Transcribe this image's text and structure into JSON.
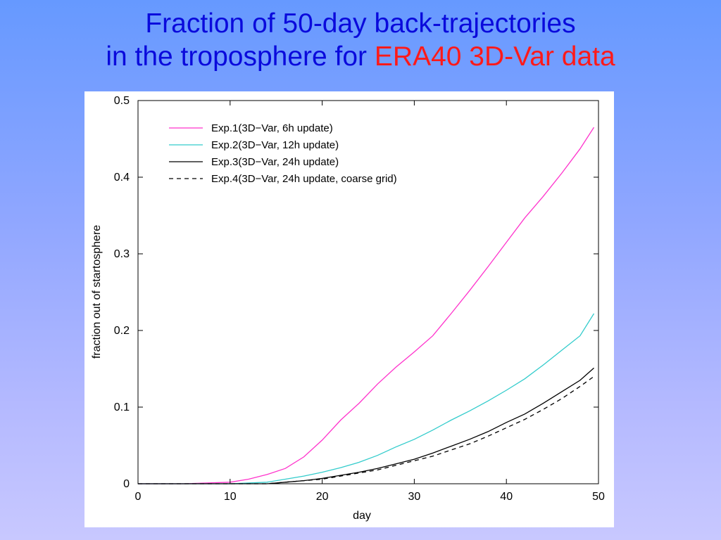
{
  "slide": {
    "title_line1": "Fraction of 50-day back-trajectories",
    "title_line2_prefix": "in the troposphere for ",
    "title_line2_accent": "ERA40 3D-Var data"
  },
  "colors": {
    "background_top": "#6699ff",
    "background_bottom": "#c8c8ff",
    "title_blue": "#0a0adc",
    "title_accent_red": "#ff1a1a"
  },
  "chart_data": {
    "type": "line",
    "xlabel": "day",
    "ylabel": "fraction out of startosphere",
    "xlim": [
      0,
      50
    ],
    "ylim": [
      0,
      0.5
    ],
    "xticks": [
      0,
      10,
      20,
      30,
      40,
      50
    ],
    "xtick_labels": [
      "0",
      "10",
      "20",
      "30",
      "40",
      "50"
    ],
    "yticks": [
      0,
      0.1,
      0.2,
      0.3,
      0.4,
      0.5
    ],
    "ytick_labels": [
      "0",
      "0.1",
      "0.2",
      "0.3",
      "0.4",
      "0.5"
    ],
    "grid": false,
    "legend_position": "top-left",
    "series": [
      {
        "name": "Exp.1(3D−Var, 6h update)",
        "color": "#ff33cc",
        "dash": "solid",
        "x": [
          0,
          5,
          10,
          12,
          14,
          16,
          18,
          20,
          22,
          24,
          26,
          28,
          30,
          32,
          34,
          36,
          38,
          40,
          42,
          44,
          46,
          48,
          49.5
        ],
        "y": [
          0,
          0,
          0.002,
          0.006,
          0.012,
          0.02,
          0.035,
          0.057,
          0.083,
          0.105,
          0.13,
          0.152,
          0.172,
          0.193,
          0.222,
          0.252,
          0.283,
          0.315,
          0.347,
          0.375,
          0.405,
          0.437,
          0.465
        ]
      },
      {
        "name": "Exp.2(3D−Var, 12h update)",
        "color": "#33cccc",
        "dash": "solid",
        "x": [
          0,
          10,
          14,
          16,
          18,
          20,
          22,
          24,
          26,
          28,
          30,
          32,
          34,
          36,
          38,
          40,
          42,
          44,
          46,
          48,
          49.5
        ],
        "y": [
          0,
          0,
          0.002,
          0.006,
          0.01,
          0.015,
          0.021,
          0.028,
          0.037,
          0.048,
          0.058,
          0.07,
          0.083,
          0.095,
          0.108,
          0.122,
          0.137,
          0.155,
          0.174,
          0.193,
          0.222
        ]
      },
      {
        "name": "Exp.3(3D−Var, 24h update)",
        "color": "#000000",
        "dash": "solid",
        "x": [
          0,
          14,
          16,
          18,
          20,
          22,
          24,
          26,
          28,
          30,
          32,
          34,
          36,
          38,
          40,
          42,
          44,
          46,
          48,
          49.5
        ],
        "y": [
          0,
          0,
          0.002,
          0.004,
          0.007,
          0.011,
          0.015,
          0.02,
          0.026,
          0.032,
          0.04,
          0.049,
          0.058,
          0.068,
          0.08,
          0.091,
          0.105,
          0.12,
          0.135,
          0.151
        ]
      },
      {
        "name": "Exp.4(3D−Var, 24h update, coarse grid)",
        "color": "#000000",
        "dash": "dashed",
        "x": [
          0,
          14,
          16,
          18,
          20,
          22,
          24,
          26,
          28,
          30,
          32,
          34,
          36,
          38,
          40,
          42,
          44,
          46,
          48,
          49.5
        ],
        "y": [
          0,
          0,
          0.002,
          0.004,
          0.006,
          0.01,
          0.014,
          0.018,
          0.024,
          0.03,
          0.036,
          0.044,
          0.052,
          0.062,
          0.073,
          0.084,
          0.097,
          0.111,
          0.127,
          0.14
        ]
      }
    ]
  }
}
